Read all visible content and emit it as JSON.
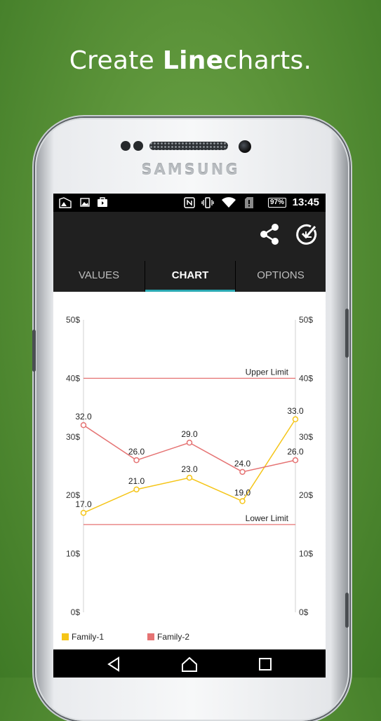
{
  "headline": {
    "regular_prefix": "Create ",
    "bold_word": "Line",
    "regular_suffix": "charts."
  },
  "device": {
    "brand": "SAMSUNG"
  },
  "status_bar": {
    "battery": "97%",
    "time": "13:45"
  },
  "tabs": [
    {
      "label": "VALUES",
      "active": false
    },
    {
      "label": "CHART",
      "active": true
    },
    {
      "label": "OPTIONS",
      "active": false
    }
  ],
  "toolbar": {
    "share_icon": "share-icon",
    "action_icon": "check-circle-icon"
  },
  "colors": {
    "accent": "#2aa9b3",
    "series1": "#f5c518",
    "series2": "#e57373",
    "limit": "#e57373",
    "appbar": "#202020"
  },
  "chart_data": {
    "type": "line",
    "x": [
      1,
      2,
      3,
      4,
      5
    ],
    "series": [
      {
        "name": "Family-1",
        "values": [
          17.0,
          21.0,
          23.0,
          19.0,
          33.0
        ],
        "labels": [
          "17.0",
          "21.0",
          "23.0",
          "19.0",
          "33.0"
        ],
        "color": "#f5c518"
      },
      {
        "name": "Family-2",
        "values": [
          32.0,
          26.0,
          29.0,
          24.0,
          26.0
        ],
        "labels": [
          "32.0",
          "26.0",
          "29.0",
          "24.0",
          "26.0"
        ],
        "color": "#e57373"
      }
    ],
    "ylim": [
      0,
      50
    ],
    "y_ticks": [
      0,
      10,
      20,
      30,
      40,
      50
    ],
    "y_tick_labels": [
      "0$",
      "10$",
      "20$",
      "30$",
      "40$",
      "50$"
    ],
    "limit_lines": [
      {
        "label": "Upper Limit",
        "value": 40
      },
      {
        "label": "Lower Limit",
        "value": 15
      }
    ],
    "dual_y_axis": true,
    "grid": false,
    "legend_position": "bottom-left"
  },
  "nav": {
    "back": "back-icon",
    "home": "home-icon",
    "recents": "recents-icon"
  }
}
